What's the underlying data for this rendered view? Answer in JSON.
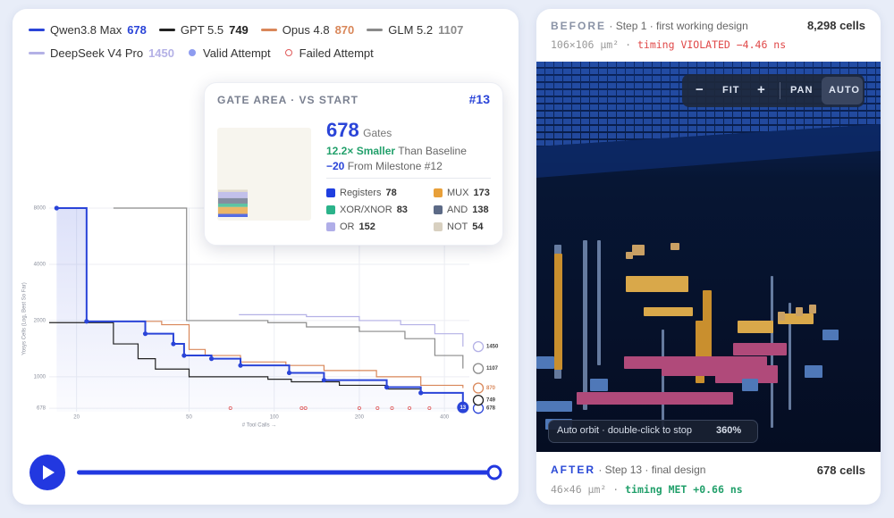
{
  "chart_data": {
    "type": "line",
    "step": true,
    "log_x": true,
    "log_y": true,
    "grid": true,
    "x_label": "# Tool Calls →",
    "y_label": "Yosys Cells (Log, Best So Far)",
    "xlim": [
      16,
      490
    ],
    "ylim": [
      650,
      8000
    ],
    "xticks": [
      20,
      50,
      100,
      200,
      400
    ],
    "yticks": [
      678,
      1000,
      2000,
      4000,
      8000
    ],
    "milestone": 13,
    "series": [
      {
        "name": "Qwen3.8 Max",
        "color": "#2a44d8",
        "shade": true,
        "x": [
          17,
          21.7,
          35,
          44,
          48,
          60,
          76,
          113,
          150,
          250,
          330,
          465
        ],
        "values": [
          8000,
          1980,
          1700,
          1500,
          1300,
          1250,
          1150,
          1050,
          960,
          880,
          820,
          678
        ]
      },
      {
        "name": "GPT 5.5",
        "color": "#222222",
        "x": [
          16,
          27,
          33,
          38,
          50,
          95,
          115,
          170,
          250,
          330,
          465
        ],
        "values": [
          1950,
          1500,
          1250,
          1100,
          1000,
          970,
          940,
          900,
          860,
          820,
          749
        ]
      },
      {
        "name": "Opus 4.8",
        "color": "#d9875a",
        "x": [
          21.7,
          40,
          50,
          57,
          76,
          110,
          150,
          230,
          330,
          465
        ],
        "values": [
          1980,
          1900,
          1400,
          1300,
          1200,
          1150,
          1080,
          1000,
          900,
          870
        ]
      },
      {
        "name": "GLM 5.2",
        "color": "#8a8a8a",
        "x": [
          27,
          49,
          95,
          130,
          200,
          290,
          370,
          465
        ],
        "values": [
          8000,
          2000,
          1950,
          1850,
          1750,
          1600,
          1300,
          1107
        ]
      },
      {
        "name": "DeepSeek V4 Pro",
        "color": "#b4b1e6",
        "x": [
          75,
          130,
          200,
          280,
          370,
          465
        ],
        "values": [
          2150,
          2100,
          2000,
          1900,
          1700,
          1450
        ]
      }
    ],
    "valid_attempt": {
      "name": "Valid Attempt",
      "color": "#8e9cf0"
    },
    "failed_attempt": {
      "name": "Failed Attempt",
      "color": "#e05a5a",
      "x": [
        70,
        125,
        129,
        200,
        232,
        261,
        301,
        354
      ]
    }
  },
  "tooltip": {
    "title": "GATE AREA · VS START",
    "milestone": "#13",
    "gates": 678,
    "gates_unit": "Gates",
    "ratio": "12.2× Smaller",
    "ratio_text": "Than Baseline",
    "delta": "−20",
    "delta_text": "From Milestone #12",
    "breakdown": [
      {
        "name": "Registers",
        "value": 78,
        "color": "#1f3fe0"
      },
      {
        "name": "MUX",
        "value": 173,
        "color": "#e8a03a"
      },
      {
        "name": "XOR/XNOR",
        "value": 83,
        "color": "#2bb38a"
      },
      {
        "name": "AND",
        "value": 138,
        "color": "#5c6a86"
      },
      {
        "name": "OR",
        "value": 152,
        "color": "#b0aee8"
      },
      {
        "name": "NOT",
        "value": 54,
        "color": "#d8d0c0"
      }
    ]
  },
  "before": {
    "label": "BEFORE",
    "step": "· Step 1 · first working design",
    "cells": "8,298 cells",
    "area": "106×106 µm²",
    "sep": "·",
    "timing": "timing VIOLATED −4.46 ns"
  },
  "viewer": {
    "controls": [
      "−",
      "FIT",
      "+",
      "PAN",
      "AUTO"
    ],
    "orbit": "Auto orbit · double-click to stop",
    "orbit_value": "360%"
  },
  "after": {
    "label": "AFTER",
    "step": "· Step 13 · final design",
    "cells": "678 cells",
    "area": "46×46 µm²",
    "sep": "·",
    "timing": "timing MET +0.66 ns"
  }
}
